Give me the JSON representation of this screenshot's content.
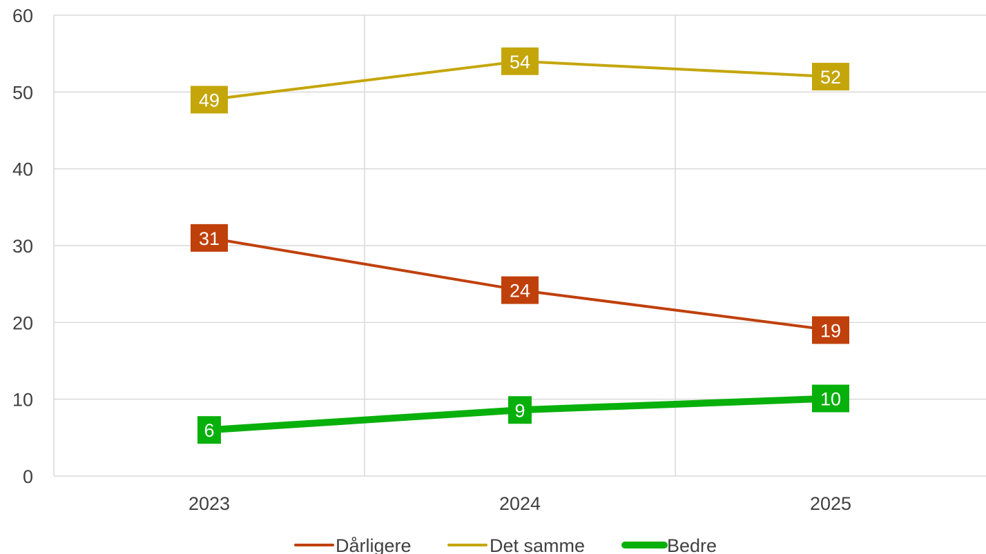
{
  "chart_data": {
    "type": "line",
    "categories": [
      "2023",
      "2024",
      "2025"
    ],
    "ylim": [
      0,
      60
    ],
    "yticks": [
      0,
      10,
      20,
      30,
      40,
      50,
      60
    ],
    "grid": true,
    "legend_position": "bottom",
    "title": "",
    "xlabel": "",
    "ylabel": "",
    "series": [
      {
        "name": "Dårligere",
        "values": [
          31,
          24.2,
          19
        ],
        "labels": [
          "31",
          "24",
          "19"
        ],
        "color": "#c0400b"
      },
      {
        "name": "Det samme",
        "values": [
          49,
          54,
          52
        ],
        "labels": [
          "49",
          "54",
          "52"
        ],
        "color": "#c4a60b"
      },
      {
        "name": "Bedre",
        "values": [
          6,
          8.6,
          10.1
        ],
        "labels": [
          "6",
          "9",
          "10"
        ],
        "color": "#08b00b"
      }
    ]
  }
}
